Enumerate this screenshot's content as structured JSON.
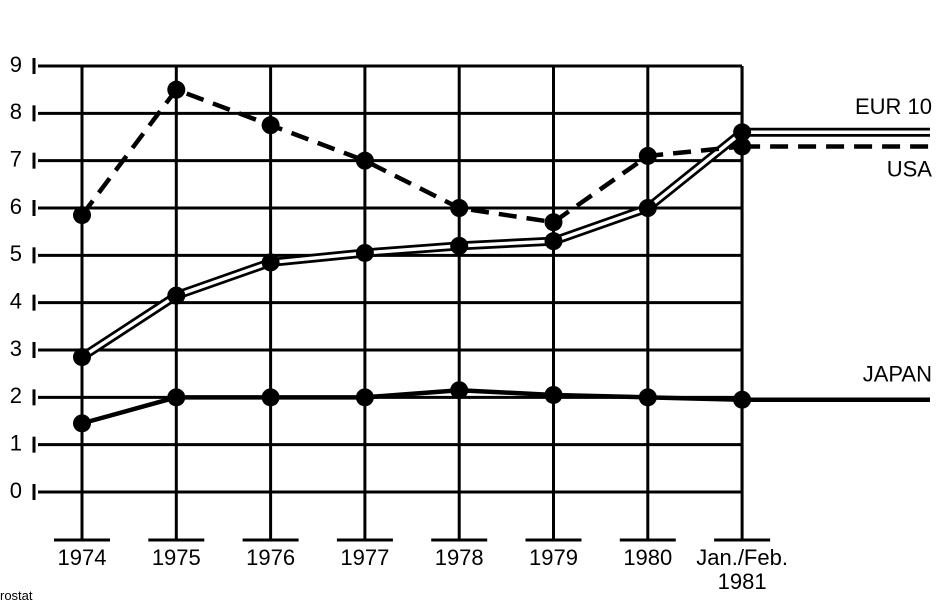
{
  "chart_data": {
    "type": "line",
    "categories": [
      "1974",
      "1975",
      "1976",
      "1977",
      "1978",
      "1979",
      "1980",
      "Jan./Feb.\n1981"
    ],
    "series": [
      {
        "name": "EUR 10",
        "color": "#000000",
        "style": "double",
        "values": [
          2.85,
          4.15,
          4.85,
          5.05,
          5.2,
          5.3,
          6.0,
          7.6
        ]
      },
      {
        "name": "USA",
        "color": "#000000",
        "style": "dashed",
        "values": [
          5.85,
          8.5,
          7.75,
          7.0,
          6.0,
          5.7,
          7.1,
          7.3
        ]
      },
      {
        "name": "JAPAN",
        "color": "#000000",
        "style": "solid",
        "values": [
          1.45,
          2.0,
          2.0,
          2.0,
          2.15,
          2.05,
          2.0,
          1.95
        ]
      }
    ],
    "ylim": [
      0,
      9
    ],
    "yticks": [
      0,
      1,
      2,
      3,
      4,
      5,
      6,
      7,
      8,
      9
    ],
    "grid": true,
    "source": "rostat"
  }
}
